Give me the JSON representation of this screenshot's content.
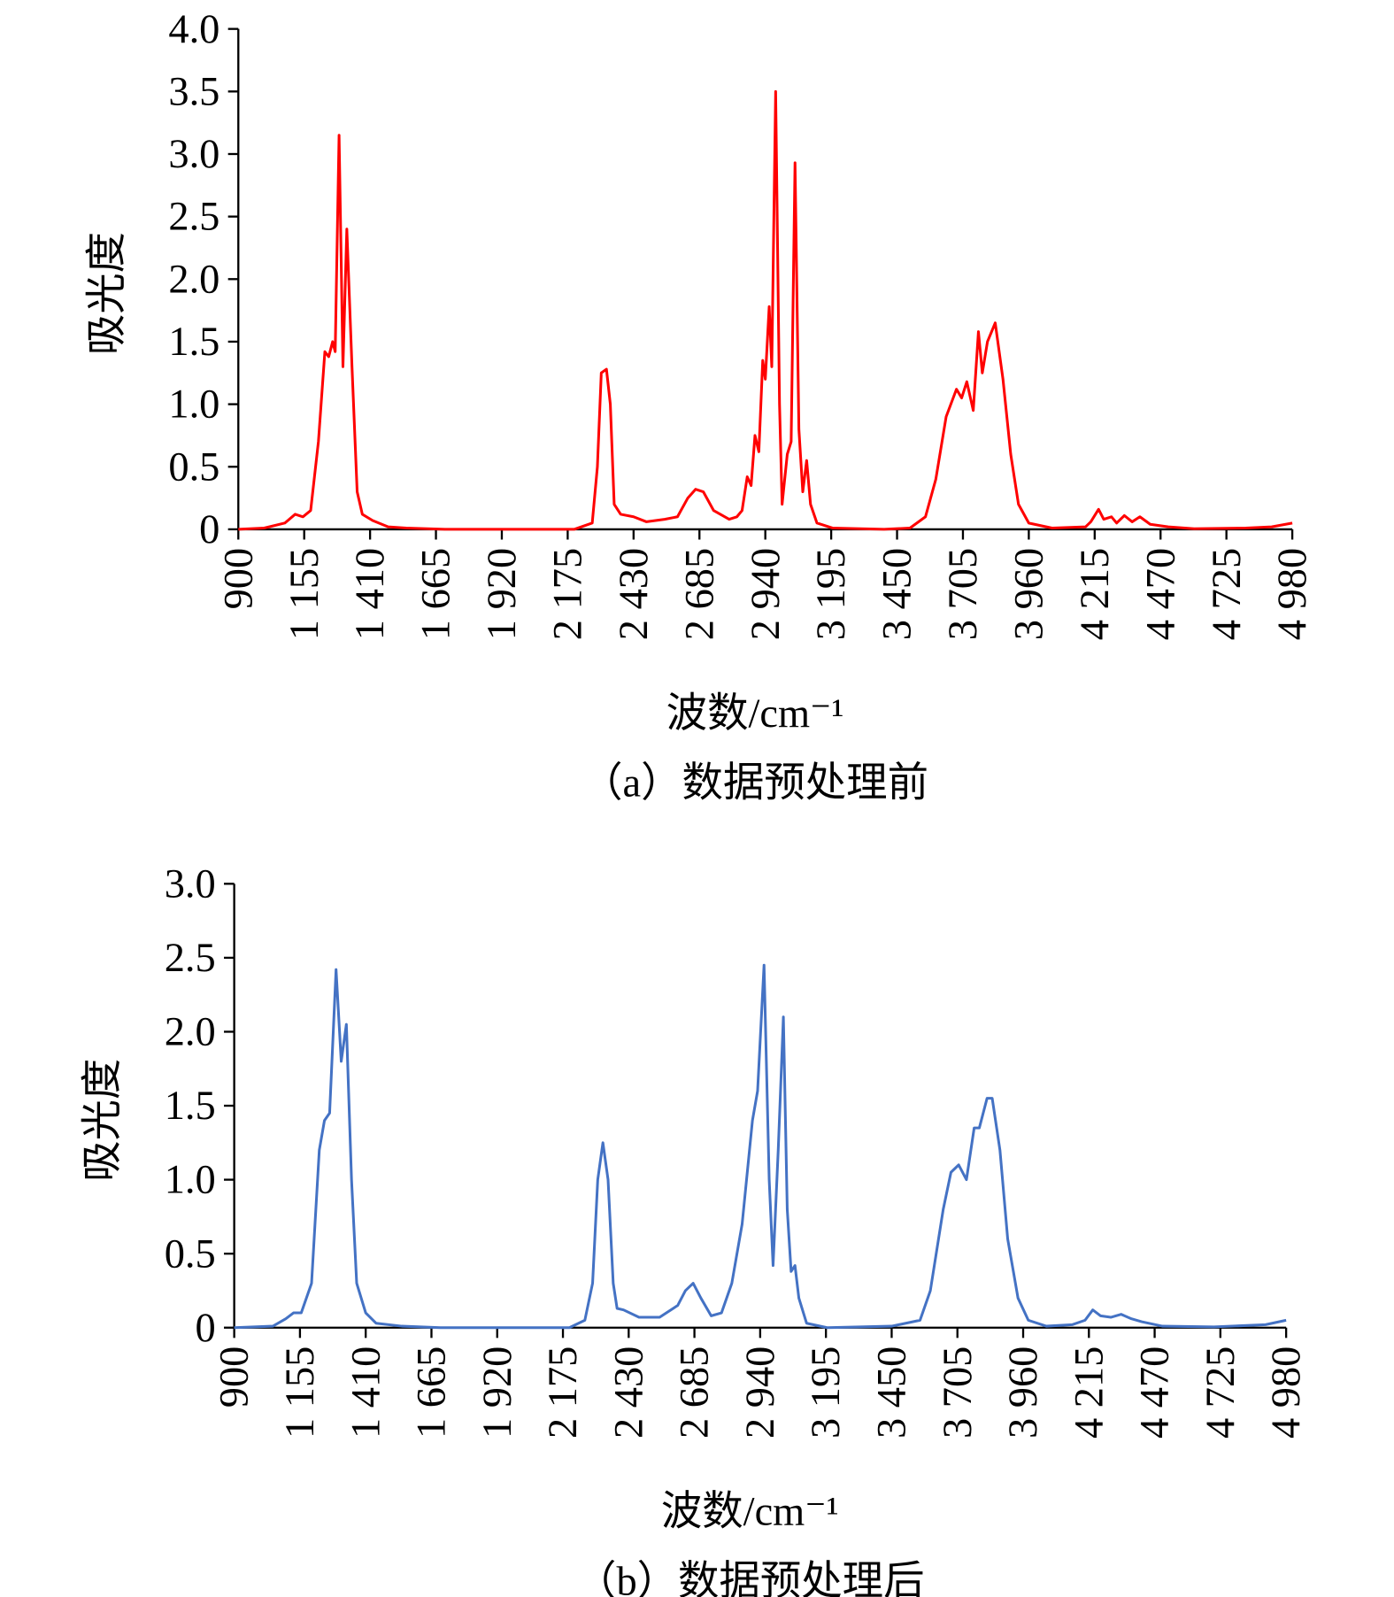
{
  "chart_data": [
    {
      "type": "line",
      "caption": "（a）数据预处理前",
      "xlabel": "波数/cm⁻¹",
      "ylabel": "吸光度",
      "color": "#ff0000",
      "xlim": [
        900,
        4980
      ],
      "ylim": [
        0,
        4
      ],
      "xticks": [
        900,
        {
          "value": 1155,
          "label": "1 155"
        },
        {
          "value": 1410,
          "label": "1 410"
        },
        {
          "value": 1665,
          "label": "1 665"
        },
        {
          "value": 1920,
          "label": "1 920"
        },
        {
          "value": 2175,
          "label": "2 175"
        },
        {
          "value": 2430,
          "label": "2 430"
        },
        {
          "value": 2685,
          "label": "2 685"
        },
        {
          "value": 2940,
          "label": "2 940"
        },
        {
          "value": 3195,
          "label": "3 195"
        },
        {
          "value": 3450,
          "label": "3 450"
        },
        {
          "value": 3705,
          "label": "3 705"
        },
        {
          "value": 3960,
          "label": "3 960"
        },
        {
          "value": 4215,
          "label": "4 215"
        },
        {
          "value": 4470,
          "label": "4 470"
        },
        {
          "value": 4725,
          "label": "4 725"
        },
        {
          "value": 4980,
          "label": "4 980"
        }
      ],
      "yticks": [
        0,
        0.5,
        {
          "value": 1,
          "label": "1.0"
        },
        1.5,
        {
          "value": 2,
          "label": "2.0"
        },
        2.5,
        {
          "value": 3,
          "label": "3.0"
        },
        3.5,
        {
          "value": 4,
          "label": "4.0"
        }
      ],
      "x": [
        900,
        1000,
        1080,
        1120,
        1150,
        1180,
        1210,
        1235,
        1250,
        1265,
        1275,
        1290,
        1305,
        1320,
        1340,
        1360,
        1380,
        1420,
        1480,
        1550,
        1700,
        2000,
        2200,
        2270,
        2290,
        2305,
        2325,
        2340,
        2355,
        2380,
        2430,
        2480,
        2550,
        2600,
        2640,
        2670,
        2700,
        2740,
        2800,
        2830,
        2850,
        2870,
        2885,
        2900,
        2915,
        2930,
        2940,
        2955,
        2965,
        2980,
        2995,
        3005,
        3025,
        3040,
        3055,
        3070,
        3085,
        3100,
        3115,
        3140,
        3200,
        3400,
        3500,
        3560,
        3600,
        3640,
        3680,
        3700,
        3720,
        3745,
        3765,
        3780,
        3800,
        3830,
        3860,
        3890,
        3920,
        3960,
        4050,
        4180,
        4200,
        4230,
        4250,
        4280,
        4300,
        4330,
        4360,
        4390,
        4430,
        4500,
        4600,
        4800,
        4900,
        4980
      ],
      "values": [
        0,
        0.01,
        0.05,
        0.12,
        0.1,
        0.15,
        0.7,
        1.42,
        1.38,
        1.5,
        1.42,
        3.15,
        1.3,
        2.4,
        1.3,
        0.3,
        0.12,
        0.07,
        0.02,
        0.01,
        0,
        0,
        0,
        0.05,
        0.5,
        1.25,
        1.28,
        1.0,
        0.2,
        0.12,
        0.1,
        0.06,
        0.08,
        0.1,
        0.25,
        0.32,
        0.3,
        0.15,
        0.08,
        0.1,
        0.15,
        0.42,
        0.35,
        0.75,
        0.62,
        1.35,
        1.2,
        1.78,
        1.3,
        3.5,
        1.0,
        0.2,
        0.6,
        0.7,
        2.93,
        0.8,
        0.3,
        0.55,
        0.2,
        0.05,
        0.01,
        0,
        0.01,
        0.1,
        0.4,
        0.9,
        1.12,
        1.05,
        1.18,
        0.95,
        1.58,
        1.25,
        1.5,
        1.65,
        1.2,
        0.6,
        0.2,
        0.05,
        0.01,
        0.02,
        0.06,
        0.16,
        0.08,
        0.1,
        0.05,
        0.11,
        0.06,
        0.1,
        0.04,
        0.02,
        0.005,
        0.01,
        0.02,
        0.05
      ]
    },
    {
      "type": "line",
      "caption": "（b）数据预处理后",
      "xlabel": "波数/cm⁻¹",
      "ylabel": "吸光度",
      "color": "#4472c4",
      "xlim": [
        900,
        4980
      ],
      "ylim": [
        0,
        3
      ],
      "xticks": [
        900,
        {
          "value": 1155,
          "label": "1 155"
        },
        {
          "value": 1410,
          "label": "1 410"
        },
        {
          "value": 1665,
          "label": "1 665"
        },
        {
          "value": 1920,
          "label": "1 920"
        },
        {
          "value": 2175,
          "label": "2 175"
        },
        {
          "value": 2430,
          "label": "2 430"
        },
        {
          "value": 2685,
          "label": "2 685"
        },
        {
          "value": 2940,
          "label": "2 940"
        },
        {
          "value": 3195,
          "label": "3 195"
        },
        {
          "value": 3450,
          "label": "3 450"
        },
        {
          "value": 3705,
          "label": "3 705"
        },
        {
          "value": 3960,
          "label": "3 960"
        },
        {
          "value": 4215,
          "label": "4 215"
        },
        {
          "value": 4470,
          "label": "4 470"
        },
        {
          "value": 4725,
          "label": "4 725"
        },
        {
          "value": 4980,
          "label": "4 980"
        }
      ],
      "yticks": [
        0,
        0.5,
        {
          "value": 1,
          "label": "1.0"
        },
        1.5,
        {
          "value": 2,
          "label": "2.0"
        },
        2.5,
        {
          "value": 3,
          "label": "3.0"
        }
      ],
      "x": [
        900,
        1050,
        1100,
        1130,
        1160,
        1200,
        1230,
        1250,
        1270,
        1295,
        1315,
        1335,
        1355,
        1375,
        1410,
        1450,
        1550,
        1700,
        2200,
        2260,
        2290,
        2310,
        2330,
        2350,
        2370,
        2385,
        2410,
        2470,
        2550,
        2620,
        2650,
        2680,
        2710,
        2750,
        2790,
        2830,
        2870,
        2910,
        2930,
        2955,
        2975,
        2990,
        3010,
        3030,
        3045,
        3060,
        3075,
        3090,
        3120,
        3200,
        3450,
        3560,
        3600,
        3650,
        3680,
        3710,
        3740,
        3770,
        3790,
        3820,
        3840,
        3870,
        3900,
        3940,
        3980,
        4050,
        4150,
        4200,
        4230,
        4260,
        4300,
        4340,
        4380,
        4420,
        4500,
        4700,
        4900,
        4980
      ],
      "values": [
        0,
        0.01,
        0.06,
        0.1,
        0.1,
        0.3,
        1.2,
        1.4,
        1.45,
        2.42,
        1.8,
        2.05,
        1.0,
        0.3,
        0.1,
        0.03,
        0.01,
        0,
        0,
        0.05,
        0.3,
        1.0,
        1.25,
        1.0,
        0.3,
        0.13,
        0.12,
        0.07,
        0.07,
        0.15,
        0.25,
        0.3,
        0.2,
        0.08,
        0.1,
        0.3,
        0.7,
        1.4,
        1.6,
        2.45,
        1.0,
        0.42,
        1.2,
        2.1,
        0.8,
        0.38,
        0.42,
        0.2,
        0.03,
        0,
        0.01,
        0.05,
        0.25,
        0.8,
        1.05,
        1.1,
        1.0,
        1.35,
        1.35,
        1.55,
        1.55,
        1.2,
        0.6,
        0.2,
        0.05,
        0.01,
        0.02,
        0.05,
        0.12,
        0.08,
        0.07,
        0.09,
        0.06,
        0.04,
        0.01,
        0.005,
        0.02,
        0.05
      ]
    }
  ]
}
